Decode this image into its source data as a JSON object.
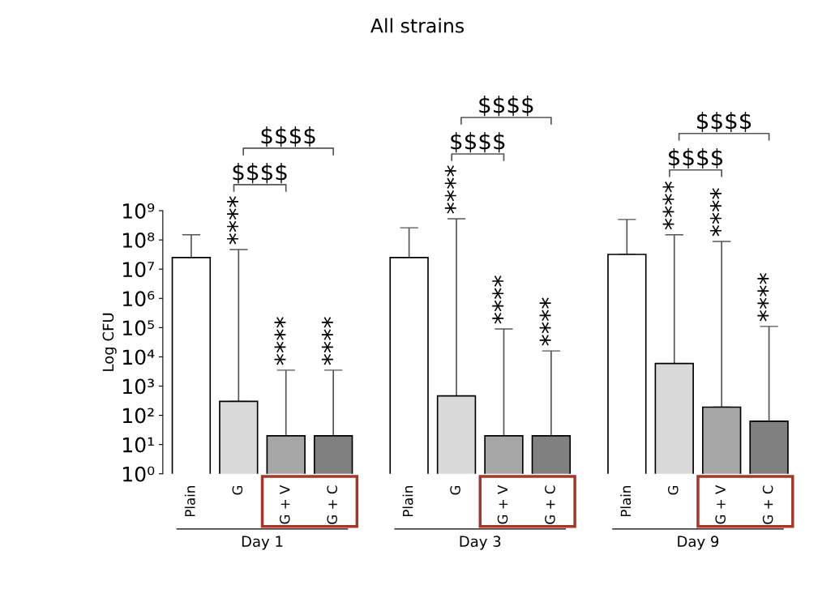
{
  "chart_data": {
    "type": "bar",
    "title": "All strains",
    "ylabel": "Log CFU",
    "log": true,
    "categories": [
      "Plain",
      "G",
      "G + V",
      "G + C",
      "Plain",
      "G",
      "G + V",
      "G + C",
      "Plain",
      "G",
      "G + V",
      "G + C"
    ],
    "values": [
      25000000,
      300,
      20,
      20,
      25000000,
      460,
      20,
      20,
      32000000,
      5900,
      190,
      63
    ],
    "errors": [
      [
        25000000,
        150000000
      ],
      [
        300,
        47000000
      ],
      [
        20,
        3500
      ],
      [
        20,
        3500
      ],
      [
        25000000,
        260000000
      ],
      [
        460,
        530000000
      ],
      [
        20,
        90000
      ],
      [
        20,
        16000
      ],
      [
        32000000,
        500000000
      ],
      [
        5900,
        150000000
      ],
      [
        190,
        89000000
      ],
      [
        63,
        110000
      ]
    ],
    "colors": [
      "#ffffff",
      "#d9d9d9",
      "#a6a6a6",
      "#808080",
      "#ffffff",
      "#d9d9d9",
      "#a6a6a6",
      "#808080",
      "#ffffff",
      "#d9d9d9",
      "#a6a6a6",
      "#808080"
    ],
    "ylim": [
      1,
      1000000000
    ],
    "yticks": [
      {
        "value": 1,
        "label": "10⁰"
      },
      {
        "value": 10,
        "label": "10¹"
      },
      {
        "value": 100,
        "label": "10²"
      },
      {
        "value": 1000,
        "label": "10³"
      },
      {
        "value": 10000,
        "label": "10⁴"
      },
      {
        "value": 100000,
        "label": "10⁵"
      },
      {
        "value": 1000000,
        "label": "10⁶"
      },
      {
        "value": 10000000,
        "label": "10⁷"
      },
      {
        "value": 100000000,
        "label": "10⁸"
      },
      {
        "value": 1000000000,
        "label": "10⁹"
      }
    ],
    "grid": false,
    "legend": false,
    "annotations": [
      "Day 1",
      "Day 3",
      "Day 9",
      "****",
      "****",
      "****",
      "****",
      "****",
      "****",
      "****",
      "****",
      "****",
      "$$$$",
      "$$$$",
      "$$$$",
      "$$$$",
      "$$$$",
      "$$$$"
    ]
  }
}
